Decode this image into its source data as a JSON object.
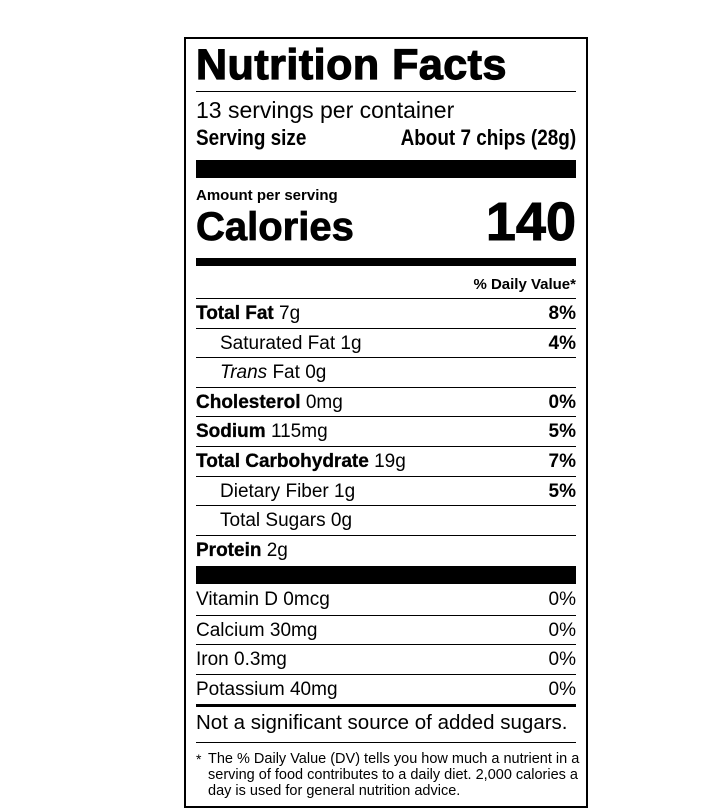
{
  "title": "Nutrition Facts",
  "servings": "13 servings per container",
  "serving_size": {
    "label": "Serving size",
    "value": "About 7 chips (28g)"
  },
  "amount_per_serving": "Amount per serving",
  "calories": {
    "label": "Calories",
    "value": 140
  },
  "daily_value_header": "% Daily Value*",
  "nutrients": [
    {
      "name": "Total Fat",
      "amount": "7g",
      "dv": "8%",
      "sub": [
        {
          "name": "Saturated Fat",
          "amount": "1g",
          "dv": "4%"
        },
        {
          "prefix": "Trans",
          "name": "Fat",
          "amount": "0g"
        }
      ]
    },
    {
      "name": "Cholesterol",
      "amount": "0mg",
      "dv": "0%"
    },
    {
      "name": "Sodium",
      "amount": "115mg",
      "dv": "5%"
    },
    {
      "name": "Total Carbohydrate",
      "amount": "19g",
      "dv": "7%",
      "sub": [
        {
          "name": "Dietary Fiber",
          "amount": "1g",
          "dv": "5%"
        },
        {
          "name": "Total Sugars",
          "amount": "0g"
        }
      ]
    },
    {
      "name": "Protein",
      "amount": "2g"
    }
  ],
  "vitamins": [
    {
      "name": "Vitamin D",
      "amount": "0mcg",
      "dv": "0%"
    },
    {
      "name": "Calcium",
      "amount": "30mg",
      "dv": "0%"
    },
    {
      "name": "Iron",
      "amount": "0.3mg",
      "dv": "0%"
    },
    {
      "name": "Potassium",
      "amount": "40mg",
      "dv": "0%"
    }
  ],
  "added_sugars_note": "Not a significant source of added sugars.",
  "footnote": {
    "marker": "*",
    "text": "The % Daily Value (DV) tells you how much a nutrient in a serving of food contributes to a daily diet. 2,000 calories a day is used for general nutrition advice."
  }
}
